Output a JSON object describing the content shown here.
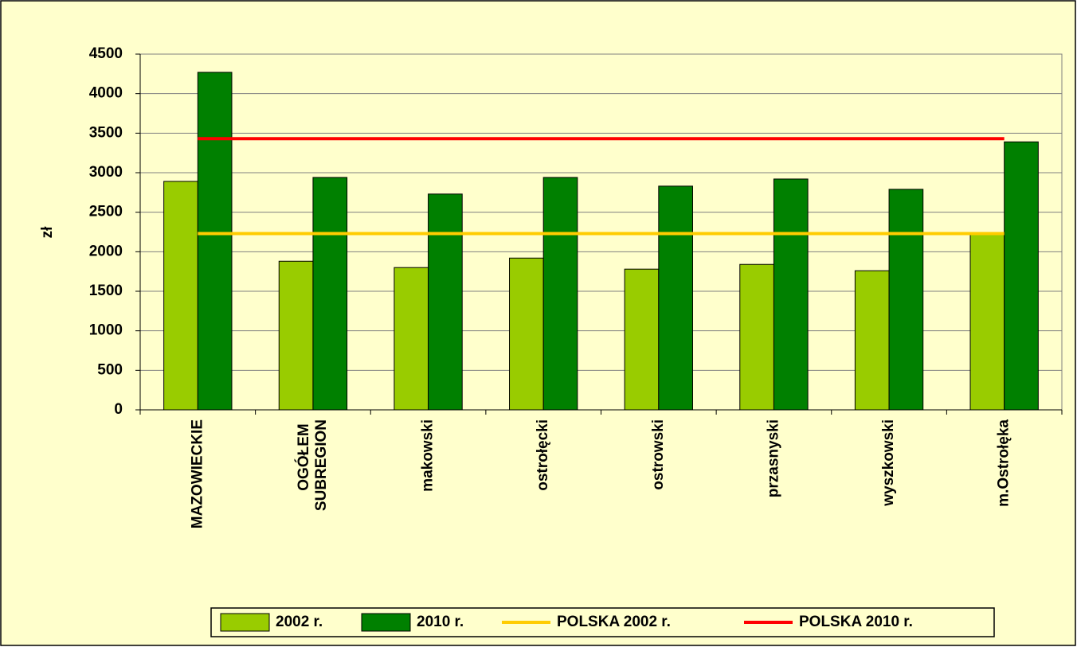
{
  "chart_data": {
    "type": "bar",
    "ylabel": "zł",
    "categories": [
      "MAZOWIECKIE",
      "OGÓŁEM SUBREGION",
      "makowski",
      "ostrołęcki",
      "ostrowski",
      "przasnyski",
      "wyszkowski",
      "m.Ostrołęka"
    ],
    "series": [
      {
        "name": "2002 r.",
        "type": "bar",
        "color": "#99cc00",
        "values": [
          2890,
          1880,
          1800,
          1920,
          1780,
          1840,
          1760,
          2240
        ]
      },
      {
        "name": "2010 r.",
        "type": "bar",
        "color": "#008000",
        "values": [
          4270,
          2940,
          2730,
          2940,
          2830,
          2920,
          2790,
          3390
        ]
      },
      {
        "name": "POLSKA 2002 r.",
        "type": "line",
        "color": "#ffcc00",
        "values": [
          2230,
          2230,
          2230,
          2230,
          2230,
          2230,
          2230,
          2230
        ]
      },
      {
        "name": "POLSKA 2010 r.",
        "type": "line",
        "color": "#ff0000",
        "values": [
          3430,
          3430,
          3430,
          3430,
          3430,
          3430,
          3430,
          3430
        ]
      }
    ],
    "ylim": [
      0,
      4500
    ],
    "yticks": [
      0,
      500,
      1000,
      1500,
      2000,
      2500,
      3000,
      3500,
      4000,
      4500
    ],
    "grid": true,
    "legend": "bottom"
  }
}
